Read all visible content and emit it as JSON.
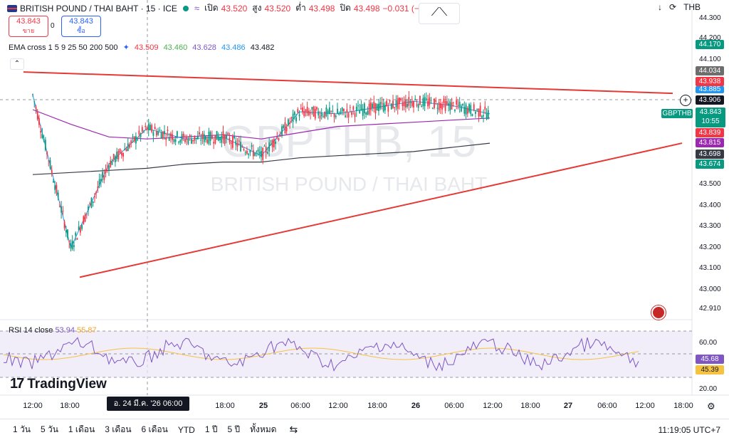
{
  "header": {
    "symbol": "BRITISH POUND / THAI BAHT · 15 · ICE",
    "open_label": "เปิด",
    "open": "43.520",
    "high_label": "สูง",
    "high": "43.520",
    "low_label": "ต่ำ",
    "low": "43.498",
    "close_label": "ปิด",
    "close": "43.498",
    "change": "−0.031 (−0"
  },
  "sell": {
    "price": "43.843",
    "label": "ขาย"
  },
  "buy": {
    "price": "43.843",
    "label": "ซื้อ"
  },
  "spread": "0",
  "ema": {
    "label": "EMA cross 1 5 9 25 50 200 500",
    "values": [
      "43.509",
      "43.460",
      "43.628",
      "43.486",
      "43.482"
    ],
    "colors": [
      "#f23645",
      "#4caf50",
      "#7e57c2",
      "#2196f3",
      "#131722"
    ]
  },
  "watermark": {
    "ticker": "GBPTHB, 15",
    "name": "BRITISH POUND / THAI BAHT"
  },
  "top_right": {
    "currency": "THB",
    "price_top": "44.300"
  },
  "y_axis": {
    "labels": [
      "44.200",
      "44.100",
      "43.500",
      "43.400",
      "43.300",
      "43.200",
      "43.100",
      "43.000",
      "42.910"
    ]
  },
  "price_tags": [
    {
      "value": "44.170",
      "color": "#089981"
    },
    {
      "value": "44.034",
      "color": "#6d6d6d"
    },
    {
      "value": "43.938",
      "color": "#f23645"
    },
    {
      "value": "43.885",
      "color": "#2196f3"
    },
    {
      "value": "43.906",
      "color": "#131722"
    },
    {
      "value": "43.839",
      "color": "#f23645"
    },
    {
      "value": "43.815",
      "color": "#9c27b0"
    },
    {
      "value": "43.698",
      "color": "#363a45"
    },
    {
      "value": "43.674",
      "color": "#089981"
    }
  ],
  "last_price": {
    "symbol": "GBPTHB",
    "value": "43.843",
    "countdown": "10:55"
  },
  "rsi": {
    "label": "RSI 14 close",
    "value": "53.94",
    "ma": "55.87",
    "axis": [
      "60.00",
      "20.00"
    ],
    "tag1": "45.68",
    "tag2": "45.39"
  },
  "x_axis": {
    "labels": [
      "12:00",
      "18:00",
      "25",
      "06:00",
      "12:00",
      "18:00",
      "26",
      "06:00",
      "12:00",
      "18:00",
      "27",
      "06:00",
      "12:00",
      "18:00",
      "18:00",
      "00"
    ],
    "crosshair_date": "อ. 24 มี.ค. '26   06:00"
  },
  "logo": "TradingView",
  "timeframes": [
    "1 วัน",
    "5 วัน",
    "1 เดือน",
    "3 เดือน",
    "6 เดือน",
    "YTD",
    "1 ปี",
    "5 ปี",
    "ทั้งหมด"
  ],
  "clock": "11:19:05 UTC+7",
  "chart_data": {
    "type": "line",
    "title": "BRITISH POUND / THAI BAHT · 15 · ICE",
    "x": [
      "24 12:00",
      "24 18:00",
      "25 00:00",
      "25 06:00",
      "25 12:00",
      "25 18:00",
      "26 00:00",
      "26 06:00",
      "26 12:00",
      "26 18:00",
      "27 00:00",
      "27 06:00",
      "27 11:15"
    ],
    "series": [
      {
        "name": "EMA 200",
        "values": [
          43.86,
          43.79,
          43.73,
          43.72,
          43.73,
          43.74,
          43.72,
          43.75,
          43.78,
          43.79,
          43.8,
          43.81,
          43.82
        ]
      },
      {
        "name": "EMA 500",
        "values": [
          43.55,
          43.56,
          43.57,
          43.58,
          43.6,
          43.61,
          43.61,
          43.63,
          43.64,
          43.65,
          43.66,
          43.68,
          43.7
        ]
      },
      {
        "name": "close",
        "values": [
          43.93,
          43.2,
          43.6,
          43.77,
          43.72,
          43.73,
          43.64,
          43.85,
          43.84,
          43.87,
          43.9,
          43.88,
          43.84
        ]
      }
    ],
    "trendlines": [
      {
        "from": [
          "24 09:00",
          44.04
        ],
        "to": [
          "27 13:00",
          43.938
        ]
      },
      {
        "from": [
          "24 12:00",
          43.06
        ],
        "to": [
          "27 13:00",
          43.7
        ]
      }
    ],
    "ylim": [
      42.91,
      44.3
    ]
  }
}
